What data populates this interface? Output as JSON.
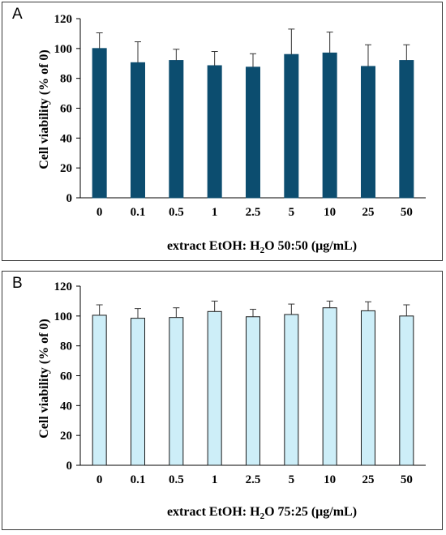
{
  "chart_data": [
    {
      "type": "bar",
      "panel_label": "A",
      "categories": [
        "0",
        "0.1",
        "0.5",
        "1",
        "2.5",
        "5",
        "10",
        "25",
        "50"
      ],
      "values": [
        100,
        90.5,
        92,
        88.5,
        87.5,
        96,
        97,
        88,
        92
      ],
      "error": [
        10.5,
        14,
        7.5,
        9.5,
        9,
        17,
        14,
        14.5,
        10.5
      ],
      "ylabel": "Cell viability (% of 0)",
      "xlabel_pre": "extract EtOH: H",
      "xlabel_sub": "2",
      "xlabel_post": "O 50:50 (μg/mL)",
      "ylim": [
        0,
        120
      ],
      "yticks": [
        "0",
        "20",
        "40",
        "60",
        "80",
        "100",
        "120"
      ],
      "bar_color": "#0c4d6f",
      "bar_stroke": "#0c4d6f",
      "grid": false
    },
    {
      "type": "bar",
      "panel_label": "B",
      "categories": [
        "0",
        "0.1",
        "0.5",
        "1",
        "2.5",
        "5",
        "10",
        "25",
        "50"
      ],
      "values": [
        100.5,
        98.5,
        99,
        103,
        99.5,
        101,
        105.5,
        103.5,
        100
      ],
      "error": [
        7,
        6.5,
        6.5,
        7,
        5,
        7,
        4.5,
        6,
        7.5
      ],
      "ylabel": "Cell viability (% of 0)",
      "xlabel_pre": "extract EtOH: H",
      "xlabel_sub": "2",
      "xlabel_post": "O 75:25 (μg/mL)",
      "ylim": [
        0,
        120
      ],
      "yticks": [
        "0",
        "20",
        "40",
        "60",
        "80",
        "100",
        "120"
      ],
      "bar_color": "#cdeef8",
      "bar_stroke": "#1a1a1a",
      "grid": false
    }
  ]
}
